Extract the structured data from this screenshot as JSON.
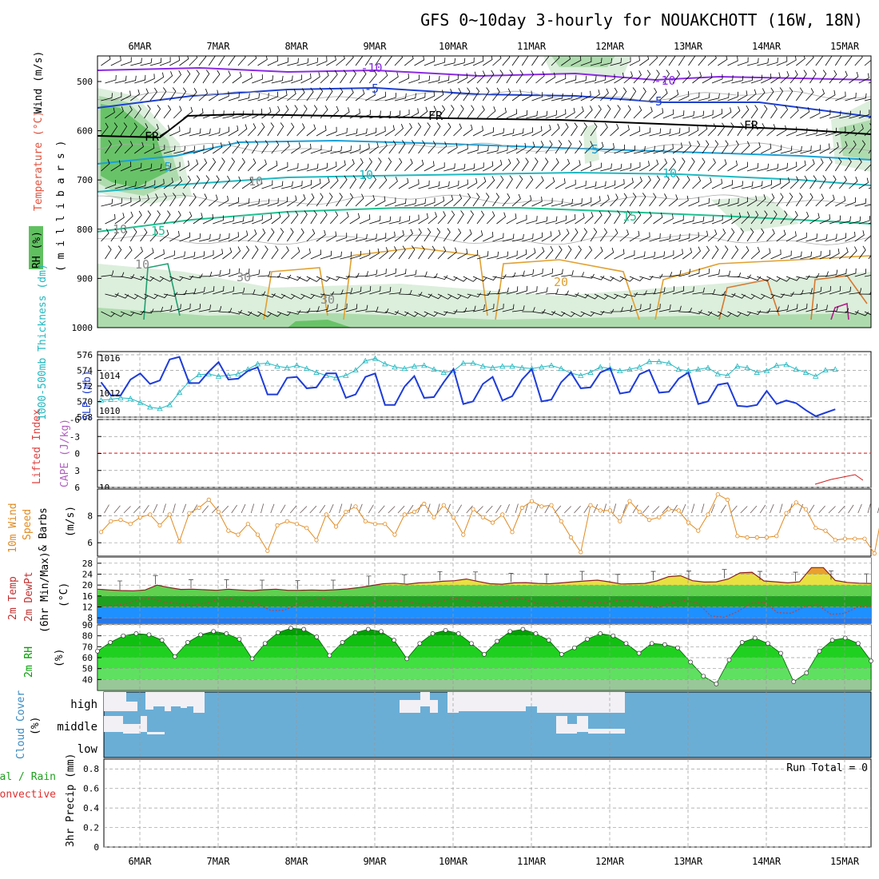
{
  "title": "GFS 0~10day 3-hourly for NOUAKCHOTT (16W, 18N)",
  "dates": [
    "6MAR",
    "7MAR",
    "8MAR",
    "9MAR",
    "10MAR",
    "11MAR",
    "12MAR",
    "13MAR",
    "14MAR",
    "15MAR"
  ],
  "colors": {
    "grid": "#999999",
    "rh_light": "#d8ecd8",
    "rh_mid": "#a8d8a8",
    "rh_dark": "#60c060",
    "slp": "#1e3cd8",
    "thickness": "#20b8c0",
    "wind": "#e08a20",
    "cloud": "#6aaed6",
    "cloud_clear": "#f2f0f5",
    "rh2m_dark": "#00a000",
    "rh2m_light": "#00e000"
  },
  "panels": {
    "upper": {
      "label_wind": "Wind (m/s)",
      "label_temp": "Temperature (°C)",
      "label_rh": "RH (%)",
      "label_mb": "( m i l l i b a r s )",
      "yticks": [
        "500",
        "600",
        "700",
        "800",
        "900",
        "1000"
      ],
      "contour_labels": [
        "-10",
        "-10",
        "-5",
        "-5",
        "FR",
        "FR",
        "FR",
        "-5",
        "5",
        "10",
        "10",
        "15",
        "15",
        "20",
        "30",
        "30",
        "10",
        "10",
        "10"
      ]
    },
    "slp": {
      "label_thick": "1000-500mb Thickness (dm)",
      "label_slp": "SLP (mb)",
      "yticks_left": [
        "576",
        "574",
        "572",
        "570",
        "568"
      ],
      "yticks_right": [
        "1016",
        "1014",
        "1012",
        "1010"
      ]
    },
    "cape": {
      "label_li": "Lifted Index",
      "label_cape": "CAPE (J/kg)",
      "yticks": [
        "-6",
        "-3",
        "0",
        "3",
        "6"
      ],
      "ytick_right": "10"
    },
    "wind10": {
      "label_a": "10m Wind",
      "label_b": "Speed",
      "label_c": "& Barbs",
      "label_unit": "(m/s)",
      "yticks": [
        "8",
        "6"
      ]
    },
    "temp2m": {
      "label_a": "2m Temp",
      "label_b": "2m DewPt",
      "label_c": "(6hr Min/Max)",
      "label_unit": "(°C)",
      "yticks": [
        "28",
        "24",
        "20",
        "16",
        "12",
        "8"
      ]
    },
    "rh2m": {
      "label": "2m RH",
      "label_unit": "(%)",
      "yticks": [
        "90",
        "80",
        "70",
        "60",
        "50",
        "40"
      ]
    },
    "cloud": {
      "label": "Cloud Cover",
      "label_unit": "(%)",
      "levels": [
        "high",
        "middle",
        "low"
      ]
    },
    "precip": {
      "label_a": "Total / Rain",
      "label_b": "Convective",
      "label_c": "3hr Precip (mm)",
      "yticks": [
        "0.8",
        "0.6",
        "0.4",
        "0.2",
        "0"
      ],
      "run_total": "Run Total = 0"
    }
  },
  "chart_data": [
    {
      "type": "line",
      "title": "SLP (mb)",
      "x_unit": "3-hourly steps from 5 Mar 12Z",
      "series": [
        {
          "name": "SLP (mb)",
          "values": [
            1013,
            1011.5,
            1011.5,
            1013.3,
            1014,
            1012.8,
            1013.2,
            1015.6,
            1015.9,
            1012.9,
            1012.9,
            1014.2,
            1015.3,
            1013.3,
            1013.4,
            1014.3,
            1014.7,
            1011.6,
            1011.6,
            1013.5,
            1013.6,
            1012.3,
            1012.4,
            1014,
            1014,
            1011.2,
            1011.6,
            1013.6,
            1014,
            1010.4,
            1010.4,
            1012.5,
            1013.7,
            1011.2,
            1011.3,
            1013,
            1014.5,
            1010.5,
            1010.8,
            1012.8,
            1013.6,
            1010.9,
            1011.4,
            1013.3,
            1014.5,
            1010.8,
            1011,
            1013,
            1014.1,
            1012.3,
            1012.4,
            1014.1,
            1014.6,
            1011.7,
            1011.9,
            1013.9,
            1014.4,
            1011.8,
            1011.9,
            1013.4,
            1014.1,
            1010.5,
            1010.8,
            1012.7,
            1012.9,
            1010.3,
            1010.2,
            1010.4,
            1012,
            1010.5,
            1010.9,
            1010.6,
            1009.8,
            1009.1,
            1009.5,
            1009.9
          ]
        }
      ],
      "ylim": [
        1009,
        1016.5
      ]
    },
    {
      "type": "line",
      "title": "1000-500mb Thickness (dm)",
      "series": [
        {
          "name": "1000-500mb Thickness (dm)",
          "values": [
            570.2,
            570.3,
            570.5,
            570.4,
            569.9,
            569.3,
            569.1,
            569.6,
            571.2,
            572.6,
            573.5,
            573.6,
            573.3,
            573.4,
            573.6,
            574.2,
            574.9,
            575,
            574.6,
            574.4,
            574.7,
            574.3,
            573.8,
            573.4,
            573.1,
            573.4,
            574.1,
            575.3,
            575.6,
            574.9,
            574.5,
            574.3,
            574.6,
            574.7,
            574.2,
            573.8,
            574,
            575,
            575,
            574.6,
            574.4,
            574.6,
            574.6,
            574.4,
            574.3,
            574.5,
            574.7,
            574.3,
            573.7,
            573.4,
            573.8,
            574.5,
            574.3,
            574,
            574.2,
            574.5,
            575.2,
            575.2,
            575,
            574.2,
            574,
            574.2,
            574.4,
            573.6,
            573.4,
            574.6,
            574.4,
            573.8,
            574,
            574.7,
            574.8,
            574.2,
            573.8,
            573.3,
            574.1,
            574.2
          ]
        }
      ],
      "ylim": [
        568,
        576.5
      ]
    },
    {
      "type": "line",
      "title": "10m Wind Speed (m/s)",
      "series": [
        {
          "name": "10m Wind Speed",
          "values": [
            6.8,
            7.6,
            7.7,
            7.4,
            7.9,
            8.1,
            7.3,
            8.1,
            6.1,
            8.2,
            8.6,
            9.2,
            8.3,
            6.9,
            6.6,
            7.4,
            6.6,
            5.4,
            7.3,
            7.6,
            7.4,
            7.1,
            6.2,
            8.1,
            7.2,
            8.3,
            8.7,
            7.6,
            7.4,
            7.4,
            6.6,
            8.1,
            8.3,
            8.9,
            7.9,
            8.8,
            7.9,
            6.6,
            8.5,
            7.9,
            7.5,
            8.1,
            6.8,
            8.6,
            9.1,
            8.7,
            8.8,
            7.6,
            6.4,
            5.3,
            8.8,
            8.4,
            8.4,
            7.6,
            9.1,
            8.3,
            7.7,
            7.9,
            8.5,
            8.4,
            7.5,
            6.9,
            8.1,
            9.6,
            9.2,
            6.5,
            6.4,
            6.4,
            6.4,
            6.5,
            8.2,
            9,
            8.5,
            7.1,
            6.9,
            6.2,
            6.3,
            6.3,
            6.3,
            5.2,
            9,
            8.8,
            8.3,
            6.3,
            6.2,
            6.3
          ]
        }
      ],
      "ylim": [
        5,
        10
      ]
    },
    {
      "type": "area",
      "title": "2m Temp / 2m DewPt (°C)",
      "series": [
        {
          "name": "2m Temp",
          "values": [
            18.5,
            18.2,
            18,
            17.9,
            18.2,
            20,
            19.1,
            18.4,
            18.5,
            18.3,
            18.1,
            18.5,
            18.2,
            18,
            18.3,
            18.5,
            18.1,
            18.1,
            18.2,
            18.1,
            18.3,
            18.6,
            19.1,
            19.8,
            20.5,
            20.7,
            20.3,
            20.8,
            21,
            21.4,
            21.6,
            22.2,
            21.3,
            20.5,
            20.3,
            20.8,
            20.9,
            20.6,
            20.5,
            20.8,
            21.2,
            21.5,
            21.8,
            21.2,
            20.4,
            20.5,
            20.6,
            21.5,
            23.1,
            23.4,
            21.6,
            21.1,
            21.2,
            22.2,
            24.5,
            24.7,
            21.5,
            21.2,
            20.8,
            21.2,
            26.4,
            26.4,
            21.7,
            21,
            20.7,
            20.6
          ]
        },
        {
          "name": "2m DewPt",
          "values": [
            12.5,
            12.4,
            12.9,
            14.6,
            15.1,
            13.8,
            13.3,
            12.5,
            13.3,
            14.6,
            15,
            14.2,
            13,
            10.7,
            10.8,
            12.9,
            14.5,
            15.1,
            13.9,
            12.5,
            12.5,
            14.1,
            14.6,
            14.2,
            13.2,
            13,
            14.5,
            15.2,
            14.1,
            13.1,
            13.4,
            14.9,
            14.9,
            13.3,
            13.2,
            14.5,
            14.9,
            13.6,
            13.4,
            14.4,
            14.6,
            12.5,
            11.7,
            13.5,
            14.4,
            13.4,
            8.7,
            8.2,
            10.3,
            13.3,
            13.7,
            9.9,
            9.7,
            12.1,
            12.8,
            9.3,
            9.6,
            12,
            12.1
          ]
        }
      ],
      "ylim": [
        6,
        30
      ]
    },
    {
      "type": "area",
      "title": "2m RH (%)",
      "series": [
        {
          "name": "2m RH",
          "values": [
            66,
            74,
            80,
            82,
            81,
            76,
            61,
            74,
            81,
            84,
            82,
            77,
            59,
            73,
            83,
            87,
            86,
            79,
            62,
            74,
            83,
            86,
            84,
            76,
            59,
            73,
            82,
            85,
            82,
            73,
            63,
            75,
            84,
            86,
            82,
            76,
            63,
            69,
            77,
            82,
            80,
            73,
            64,
            73,
            72,
            69,
            56,
            43,
            36,
            58,
            74,
            78,
            73,
            64,
            38,
            46,
            66,
            76,
            78,
            73,
            57
          ]
        }
      ],
      "ylim": [
        30,
        90
      ]
    },
    {
      "type": "line",
      "title": "3hr Precip (mm)",
      "series": [
        {
          "name": "3hr Precip",
          "values": []
        }
      ],
      "ylim": [
        0,
        0.9
      ]
    }
  ]
}
